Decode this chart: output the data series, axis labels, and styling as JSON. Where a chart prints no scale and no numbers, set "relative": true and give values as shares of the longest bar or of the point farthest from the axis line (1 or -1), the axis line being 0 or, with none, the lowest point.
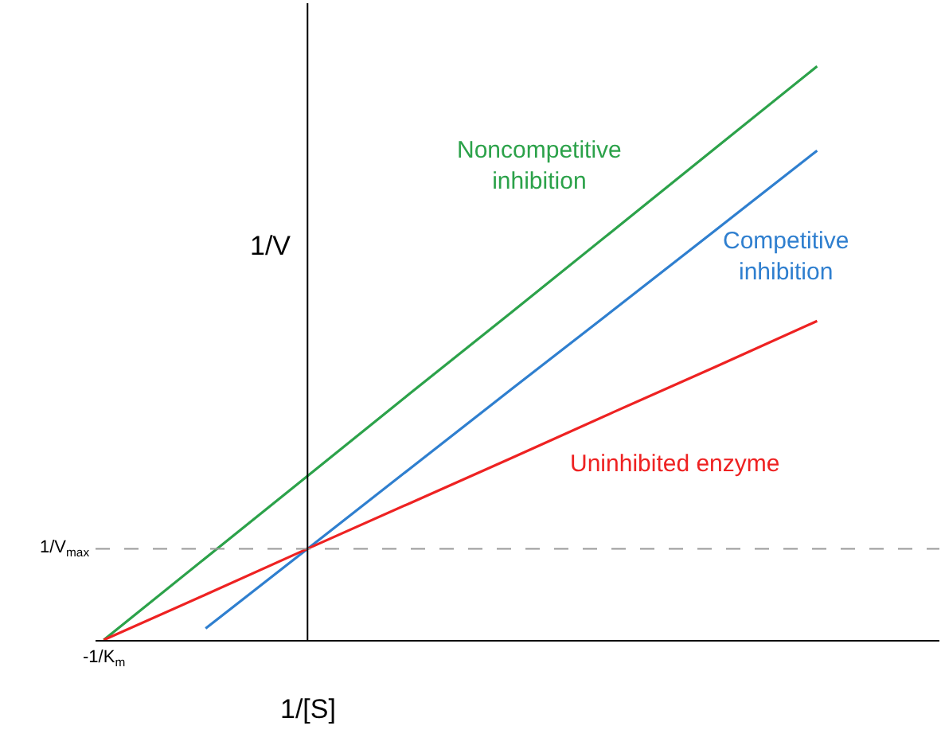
{
  "chart_data": {
    "type": "line",
    "xlabel": "1/[S]",
    "ylabel": "1/V",
    "relative": true,
    "categories": [
      null,
      null,
      null,
      null,
      null,
      null,
      null,
      null
    ],
    "annotations": [
      {
        "text": "-1/K$_{m}$",
        "y": 0
      }
    ],
    "series": [
      {
        "name": "Noncompetitive inhibition",
        "color": "#2ca24a",
        "values": [
          0,
          0.143,
          0.286,
          0.429,
          0.571,
          0.714,
          0.857,
          1
        ]
      },
      {
        "name": "Competitive inhibition",
        "color": "#2f7fcf",
        "values": [
          null,
          0.02,
          0.159,
          0.298,
          0.437,
          0.575,
          0.714,
          0.853
        ]
      },
      {
        "name": "Uninhibited enzyme",
        "color": "#ee2222",
        "values": [
          0,
          0.079,
          0.159,
          0.238,
          0.317,
          0.397,
          0.476,
          0.556
        ]
      }
    ],
    "ref_lines": [
      {
        "axis": "y",
        "value": 0.159,
        "line_style": "dashed",
        "color": "#999999",
        "label": "1/V$_{max}$"
      }
    ],
    "grid": false,
    "legend": false,
    "marker": "none",
    "line_style": "solid"
  }
}
